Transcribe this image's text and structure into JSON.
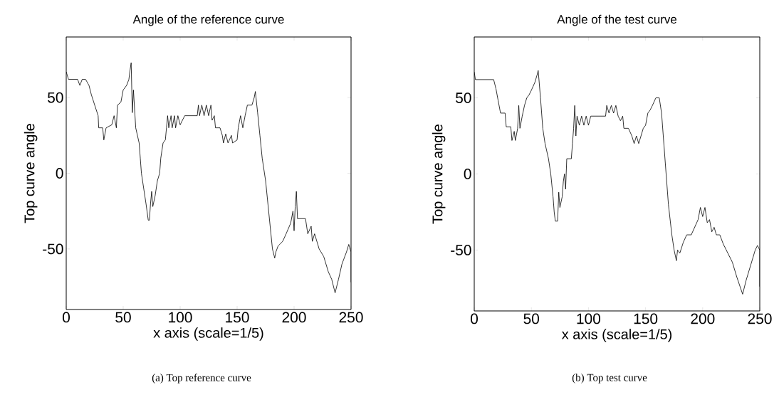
{
  "chart_data": [
    {
      "type": "line",
      "title": "Angle of the reference curve",
      "xlabel": "x axis (scale=1/5)",
      "ylabel": "Top curve angle",
      "annotations": [
        "(a) Top reference curve"
      ],
      "xlim": [
        0,
        250
      ],
      "ylim": [
        -90,
        90
      ],
      "xticks": [
        0,
        50,
        100,
        150,
        200,
        250
      ],
      "yticks": [
        -50,
        0,
        50
      ],
      "grid": false,
      "line_style": "solid",
      "color": "#000000",
      "x": [
        0,
        2,
        10,
        12,
        14,
        17,
        20,
        22,
        25,
        28,
        28.5,
        32,
        33,
        35,
        40,
        42,
        44,
        45,
        48,
        50,
        53,
        55,
        56,
        57,
        58,
        59,
        61,
        64,
        65,
        66,
        68,
        70,
        72,
        73,
        74,
        75,
        76,
        78,
        80,
        82,
        83,
        85,
        87,
        88,
        89,
        90,
        92,
        93,
        95,
        96,
        98,
        100,
        104,
        115,
        116,
        117,
        119,
        121,
        123,
        125,
        127,
        128,
        130,
        131,
        135,
        137,
        138,
        140,
        142,
        145,
        146,
        150,
        151,
        153,
        155,
        157,
        159,
        163,
        165,
        166,
        168,
        170,
        172,
        175,
        177,
        179,
        181,
        183,
        184,
        186,
        190,
        193,
        197,
        199,
        200,
        201,
        202,
        203,
        210,
        212,
        215,
        216,
        218,
        222,
        226,
        230,
        233,
        236,
        239,
        242,
        246,
        248,
        250,
        250
      ],
      "values": [
        67,
        62,
        62,
        58,
        62,
        62,
        58,
        52,
        45,
        38,
        30,
        30,
        22,
        30,
        32,
        38,
        30,
        45,
        47,
        55,
        58,
        62,
        68,
        73,
        40,
        55,
        30,
        20,
        10,
        0,
        -10,
        -20,
        -31,
        -31,
        -20,
        -12,
        -22,
        -15,
        -5,
        0,
        10,
        20,
        22,
        30,
        38,
        30,
        38,
        30,
        38,
        30,
        38,
        32,
        38,
        38,
        45,
        38,
        45,
        38,
        45,
        38,
        45,
        35,
        38,
        30,
        30,
        25,
        20,
        26,
        20,
        25,
        20,
        22,
        30,
        38,
        30,
        38,
        45,
        45,
        50,
        54,
        40,
        25,
        10,
        -5,
        -20,
        -35,
        -50,
        -56,
        -52,
        -48,
        -45,
        -40,
        -33,
        -25,
        -38,
        -22,
        -12,
        -30,
        -30,
        -40,
        -35,
        -45,
        -40,
        -50,
        -55,
        -65,
        -70,
        -79,
        -70,
        -60,
        -52,
        -47,
        -52,
        -72
      ]
    },
    {
      "type": "line",
      "title": "Angle of the test curve",
      "xlabel": "x axis (scale=1/5)",
      "ylabel": "Top curve angle",
      "annotations": [
        "(b) Top test curve"
      ],
      "xlim": [
        0,
        250
      ],
      "ylim": [
        -90,
        90
      ],
      "xticks": [
        0,
        50,
        100,
        150,
        200,
        250
      ],
      "yticks": [
        -50,
        0,
        50
      ],
      "grid": false,
      "line_style": "solid",
      "color": "#000000",
      "x": [
        0,
        1,
        17,
        19,
        21,
        23,
        27,
        28,
        32,
        33,
        35,
        36,
        38,
        39,
        40,
        42,
        44,
        46,
        48,
        50,
        53,
        55,
        56,
        58,
        60,
        62,
        65,
        67,
        69,
        70,
        71,
        73,
        74,
        75,
        77,
        78,
        79,
        80,
        81,
        85,
        86,
        87,
        88,
        89,
        90,
        92,
        94,
        96,
        98,
        100,
        102,
        105,
        115,
        116,
        118,
        120,
        122,
        124,
        126,
        128,
        130,
        131,
        135,
        138,
        140,
        142,
        144,
        146,
        148,
        150,
        152,
        154,
        156,
        159,
        162,
        164,
        166,
        168,
        170,
        173,
        175,
        177,
        178,
        180,
        183,
        186,
        190,
        193,
        196,
        198,
        200,
        202,
        204,
        206,
        208,
        210,
        212,
        215,
        218,
        222,
        226,
        230,
        235,
        238,
        242,
        246,
        248,
        250,
        250
      ],
      "values": [
        67,
        62,
        62,
        56,
        48,
        40,
        40,
        31,
        31,
        22,
        28,
        22,
        30,
        45,
        30,
        38,
        45,
        50,
        52,
        55,
        60,
        65,
        68,
        50,
        30,
        20,
        10,
        0,
        -15,
        -25,
        -31,
        -31,
        -12,
        -22,
        -15,
        -5,
        0,
        -10,
        10,
        10,
        20,
        30,
        45,
        25,
        38,
        32,
        38,
        32,
        38,
        32,
        38,
        38,
        38,
        45,
        40,
        45,
        40,
        45,
        38,
        35,
        38,
        30,
        30,
        25,
        20,
        25,
        20,
        25,
        30,
        32,
        40,
        42,
        45,
        50,
        50,
        40,
        20,
        0,
        -20,
        -40,
        -50,
        -57,
        -50,
        -52,
        -45,
        -40,
        -40,
        -35,
        -30,
        -22,
        -28,
        -22,
        -32,
        -30,
        -38,
        -35,
        -40,
        -40,
        -46,
        -52,
        -58,
        -68,
        -79,
        -70,
        -60,
        -50,
        -47,
        -50,
        -74
      ]
    }
  ]
}
